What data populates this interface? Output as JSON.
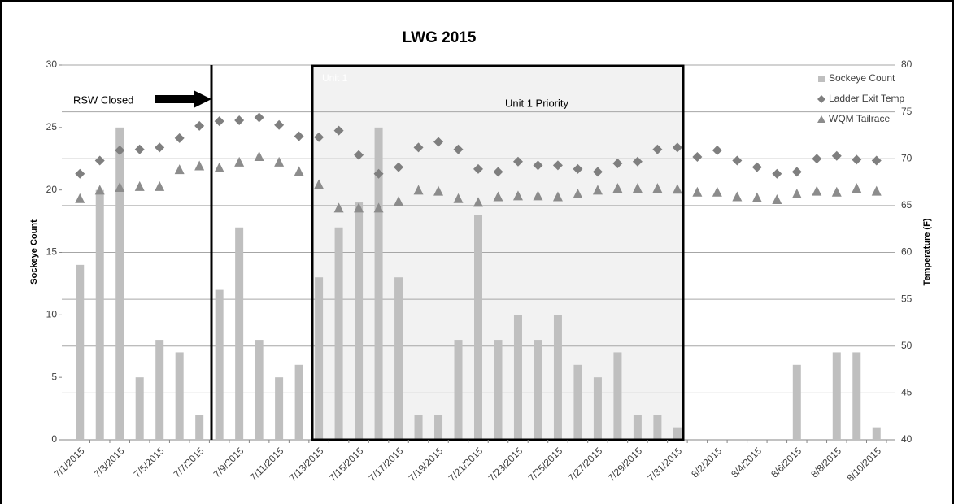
{
  "chart_data": {
    "type": "combo",
    "title": "LWG 2015",
    "categories": [
      "7/1/2015",
      null,
      "7/3/2015",
      null,
      "7/5/2015",
      null,
      "7/7/2015",
      null,
      "7/9/2015",
      null,
      "7/11/2015",
      null,
      "7/13/2015",
      null,
      "7/15/2015",
      null,
      "7/17/2015",
      null,
      "7/19/2015",
      null,
      "7/21/2015",
      null,
      "7/23/2015",
      null,
      "7/25/2015",
      null,
      "7/27/2015",
      null,
      "7/29/2015",
      null,
      "7/31/2015",
      null,
      "8/2/2015",
      null,
      "8/4/2015",
      null,
      "8/6/2015",
      null,
      "8/8/2015",
      null,
      "8/10/2015"
    ],
    "series": [
      {
        "name": "Sockeye Count",
        "type": "bar",
        "color": "#bfbfbf",
        "values": [
          14,
          20,
          25,
          5,
          8,
          7,
          2,
          12,
          17,
          8,
          5,
          6,
          13,
          17,
          19,
          25,
          13,
          2,
          2,
          8,
          18,
          8,
          10,
          8,
          10,
          6,
          5,
          7,
          2,
          2,
          1,
          0,
          0,
          0,
          0,
          0,
          6,
          0,
          7,
          7,
          1
        ]
      },
      {
        "name": "Ladder Exit Temp",
        "type": "diamond",
        "axis": "y2",
        "color": "#7f7f7f",
        "values": [
          68.4,
          69.8,
          70.9,
          71.0,
          71.2,
          72.2,
          73.5,
          74.0,
          74.1,
          74.4,
          73.6,
          72.4,
          72.3,
          73.0,
          70.4,
          68.4,
          69.1,
          71.2,
          71.8,
          71.0,
          68.9,
          68.6,
          69.7,
          69.3,
          69.3,
          68.9,
          68.6,
          69.5,
          69.7,
          71.0,
          71.2,
          70.2,
          70.9,
          69.8,
          69.1,
          68.4,
          68.6,
          70.0,
          70.3,
          69.9,
          69.8
        ]
      },
      {
        "name": "WQM Tailrace",
        "type": "triangle",
        "axis": "y2",
        "color": "#8c8c8c",
        "values": [
          65.7,
          66.6,
          66.9,
          67.0,
          67.0,
          68.8,
          69.2,
          69.0,
          69.6,
          70.2,
          69.6,
          68.6,
          67.2,
          64.7,
          64.7,
          64.7,
          65.4,
          66.6,
          66.5,
          65.7,
          65.3,
          65.9,
          66.0,
          66.0,
          65.9,
          66.2,
          66.6,
          66.8,
          66.8,
          66.8,
          66.7,
          66.4,
          66.4,
          65.9,
          65.8,
          65.6,
          66.2,
          66.5,
          66.4,
          66.8,
          66.5
        ]
      }
    ],
    "y_label": "Sockeye Count",
    "y2_label": "Temperature (F)",
    "ylim": [
      0,
      30
    ],
    "yticks": [
      0,
      5,
      10,
      15,
      20,
      25,
      30
    ],
    "y2lim": [
      40,
      80
    ],
    "y2ticks": [
      40,
      45,
      50,
      55,
      60,
      65,
      70,
      75,
      80
    ],
    "grid": true,
    "legend": "top-right",
    "annotations": [
      "RSW Closed",
      "Unit 1",
      "Unit 1 Priority"
    ]
  }
}
